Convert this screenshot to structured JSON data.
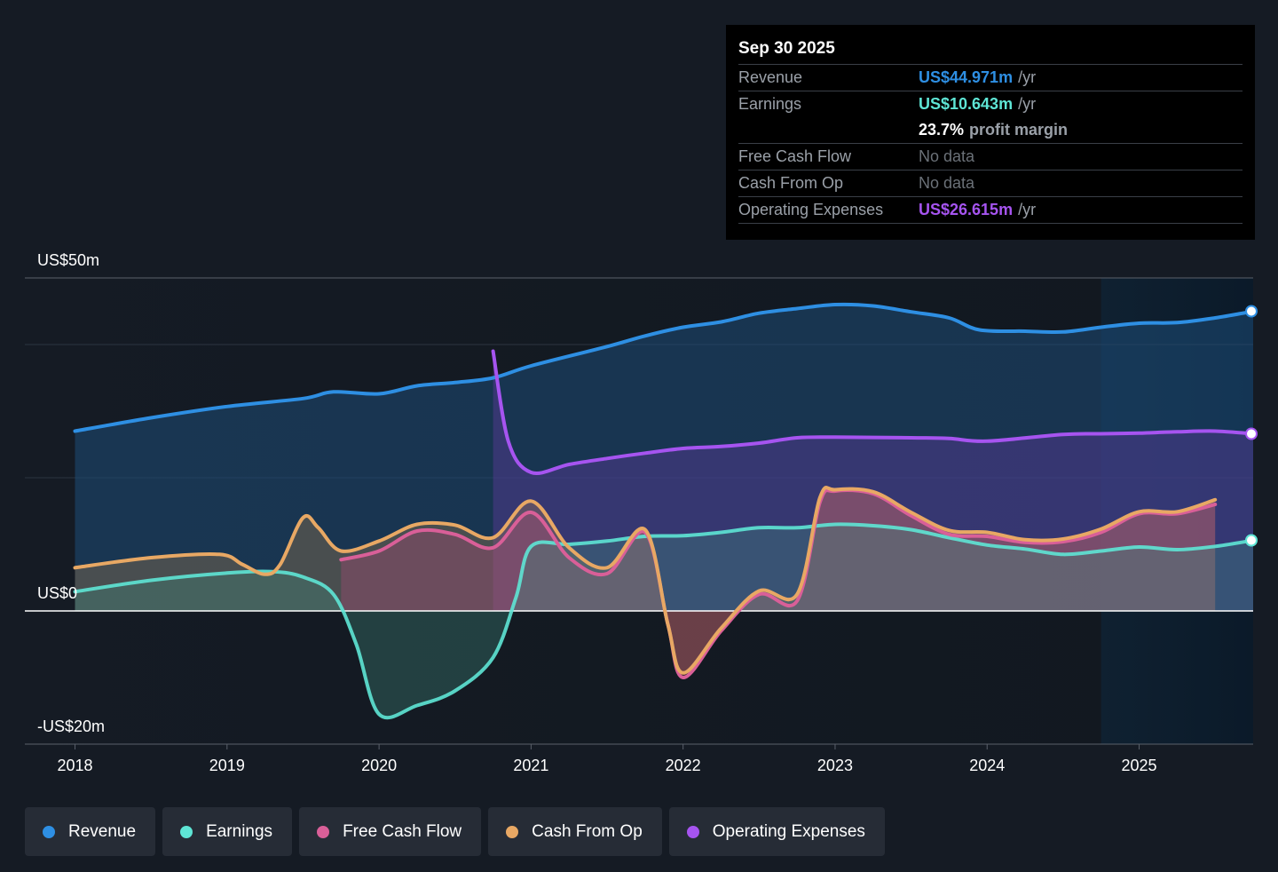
{
  "colors": {
    "revenue": "#2e8fe3",
    "earnings": "#5ee5d5",
    "fcf": "#d95f98",
    "cfo": "#e8a864",
    "opex": "#a654f0",
    "background": "#151b24",
    "tooltip_bg": "#000000"
  },
  "tooltip": {
    "date": "Sep 30 2025",
    "rows": {
      "revenue": {
        "label": "Revenue",
        "value": "US$44.971m",
        "unit": "/yr"
      },
      "earnings": {
        "label": "Earnings",
        "value": "US$10.643m",
        "unit": "/yr"
      },
      "margin": {
        "value": "23.7%",
        "unit": "profit margin"
      },
      "fcf": {
        "label": "Free Cash Flow",
        "value": "No data"
      },
      "cfo": {
        "label": "Cash From Op",
        "value": "No data"
      },
      "opex": {
        "label": "Operating Expenses",
        "value": "US$26.615m",
        "unit": "/yr"
      }
    }
  },
  "legend": [
    {
      "key": "revenue",
      "label": "Revenue",
      "icon": "revenue-dot-icon"
    },
    {
      "key": "earnings",
      "label": "Earnings",
      "icon": "earnings-dot-icon"
    },
    {
      "key": "fcf",
      "label": "Free Cash Flow",
      "icon": "fcf-dot-icon"
    },
    {
      "key": "cfo",
      "label": "Cash From Op",
      "icon": "cfo-dot-icon"
    },
    {
      "key": "opex",
      "label": "Operating Expenses",
      "icon": "opex-dot-icon"
    }
  ],
  "chart_data": {
    "type": "area",
    "x_ticks": [
      2018,
      2019,
      2020,
      2021,
      2022,
      2023,
      2024,
      2025
    ],
    "x_range": [
      2017.67,
      2025.75
    ],
    "y_range": [
      -20,
      50
    ],
    "y_labels": [
      {
        "value": 50,
        "text": "US$50m"
      },
      {
        "value": 0,
        "text": "US$0"
      },
      {
        "value": -20,
        "text": "-US$20m"
      }
    ],
    "gridlines": [
      50,
      40,
      20,
      0
    ],
    "forecast_shading_start": 2024.75,
    "series": [
      {
        "key": "revenue",
        "name": "Revenue",
        "points": [
          [
            2018,
            27.0
          ],
          [
            2018.5,
            29.0
          ],
          [
            2019,
            30.7
          ],
          [
            2019.5,
            31.9
          ],
          [
            2019.7,
            32.9
          ],
          [
            2020,
            32.6
          ],
          [
            2020.25,
            33.8
          ],
          [
            2020.5,
            34.3
          ],
          [
            2020.75,
            35.0
          ],
          [
            2021,
            36.8
          ],
          [
            2021.5,
            39.7
          ],
          [
            2021.75,
            41.3
          ],
          [
            2022,
            42.6
          ],
          [
            2022.25,
            43.4
          ],
          [
            2022.5,
            44.7
          ],
          [
            2022.75,
            45.4
          ],
          [
            2023,
            46.0
          ],
          [
            2023.25,
            45.8
          ],
          [
            2023.5,
            44.9
          ],
          [
            2023.75,
            44.0
          ],
          [
            2023.95,
            42.2
          ],
          [
            2024.25,
            42.0
          ],
          [
            2024.5,
            41.9
          ],
          [
            2024.75,
            42.6
          ],
          [
            2025,
            43.2
          ],
          [
            2025.25,
            43.3
          ],
          [
            2025.5,
            44.0
          ],
          [
            2025.75,
            45.0
          ]
        ]
      },
      {
        "key": "opex",
        "name": "Operating Expenses",
        "points": [
          [
            2020.75,
            39.0
          ],
          [
            2020.85,
            25.5
          ],
          [
            2021,
            20.8
          ],
          [
            2021.25,
            22.0
          ],
          [
            2021.5,
            22.9
          ],
          [
            2021.75,
            23.7
          ],
          [
            2022,
            24.4
          ],
          [
            2022.25,
            24.7
          ],
          [
            2022.5,
            25.2
          ],
          [
            2022.75,
            26.0
          ],
          [
            2023,
            26.1
          ],
          [
            2023.5,
            26.0
          ],
          [
            2023.75,
            25.9
          ],
          [
            2024,
            25.5
          ],
          [
            2024.5,
            26.5
          ],
          [
            2024.75,
            26.6
          ],
          [
            2025,
            26.7
          ],
          [
            2025.25,
            26.9
          ],
          [
            2025.5,
            27.0
          ],
          [
            2025.75,
            26.6
          ]
        ]
      },
      {
        "key": "earnings",
        "name": "Earnings",
        "points": [
          [
            2018,
            2.9
          ],
          [
            2018.5,
            4.6
          ],
          [
            2019,
            5.7
          ],
          [
            2019.3,
            5.9
          ],
          [
            2019.5,
            5.1
          ],
          [
            2019.7,
            2.5
          ],
          [
            2019.85,
            -5.0
          ],
          [
            2020,
            -15.5
          ],
          [
            2020.25,
            -14.2
          ],
          [
            2020.5,
            -12.0
          ],
          [
            2020.75,
            -7.0
          ],
          [
            2020.9,
            2.0
          ],
          [
            2021,
            9.7
          ],
          [
            2021.25,
            10.0
          ],
          [
            2021.5,
            10.5
          ],
          [
            2021.75,
            11.2
          ],
          [
            2022,
            11.3
          ],
          [
            2022.25,
            11.8
          ],
          [
            2022.5,
            12.5
          ],
          [
            2022.75,
            12.5
          ],
          [
            2023,
            13.0
          ],
          [
            2023.25,
            12.8
          ],
          [
            2023.5,
            12.2
          ],
          [
            2023.75,
            11.0
          ],
          [
            2024,
            9.9
          ],
          [
            2024.25,
            9.3
          ],
          [
            2024.5,
            8.5
          ],
          [
            2024.75,
            9.0
          ],
          [
            2025,
            9.6
          ],
          [
            2025.25,
            9.2
          ],
          [
            2025.5,
            9.7
          ],
          [
            2025.75,
            10.6
          ]
        ]
      },
      {
        "key": "fcf",
        "name": "Free Cash Flow",
        "points": [
          [
            2019.75,
            7.7
          ],
          [
            2020,
            9.0
          ],
          [
            2020.25,
            12.0
          ],
          [
            2020.5,
            11.5
          ],
          [
            2020.75,
            9.5
          ],
          [
            2021,
            14.8
          ],
          [
            2021.25,
            8.0
          ],
          [
            2021.5,
            5.6
          ],
          [
            2021.75,
            11.8
          ],
          [
            2021.9,
            -2.0
          ],
          [
            2022,
            -10.0
          ],
          [
            2022.25,
            -3.0
          ],
          [
            2022.5,
            2.5
          ],
          [
            2022.75,
            1.5
          ],
          [
            2022.9,
            16.3
          ],
          [
            2023,
            18.0
          ],
          [
            2023.25,
            17.6
          ],
          [
            2023.5,
            14.3
          ],
          [
            2023.75,
            11.5
          ],
          [
            2024,
            11.2
          ],
          [
            2024.25,
            10.3
          ],
          [
            2024.5,
            10.4
          ],
          [
            2024.75,
            11.8
          ],
          [
            2025,
            14.6
          ],
          [
            2025.25,
            14.6
          ],
          [
            2025.5,
            16.0
          ]
        ]
      },
      {
        "key": "cfo",
        "name": "Cash From Op",
        "points": [
          [
            2018,
            6.5
          ],
          [
            2018.5,
            8.0
          ],
          [
            2018.95,
            8.5
          ],
          [
            2019.1,
            7.0
          ],
          [
            2019.25,
            5.5
          ],
          [
            2019.35,
            7.0
          ],
          [
            2019.5,
            14.0
          ],
          [
            2019.6,
            12.5
          ],
          [
            2019.75,
            9.0
          ],
          [
            2020,
            10.5
          ],
          [
            2020.25,
            13.0
          ],
          [
            2020.5,
            12.9
          ],
          [
            2020.75,
            11.0
          ],
          [
            2021,
            16.5
          ],
          [
            2021.25,
            9.5
          ],
          [
            2021.5,
            6.5
          ],
          [
            2021.75,
            12.2
          ],
          [
            2021.9,
            -2.0
          ],
          [
            2022,
            -9.3
          ],
          [
            2022.25,
            -2.6
          ],
          [
            2022.5,
            3.0
          ],
          [
            2022.75,
            2.5
          ],
          [
            2022.9,
            17.0
          ],
          [
            2023,
            18.2
          ],
          [
            2023.25,
            17.9
          ],
          [
            2023.5,
            14.8
          ],
          [
            2023.75,
            12.1
          ],
          [
            2024,
            11.8
          ],
          [
            2024.25,
            10.7
          ],
          [
            2024.5,
            10.8
          ],
          [
            2024.75,
            12.3
          ],
          [
            2025,
            14.9
          ],
          [
            2025.25,
            14.9
          ],
          [
            2025.5,
            16.7
          ]
        ]
      }
    ],
    "end_markers": [
      "revenue",
      "opex",
      "earnings"
    ]
  }
}
